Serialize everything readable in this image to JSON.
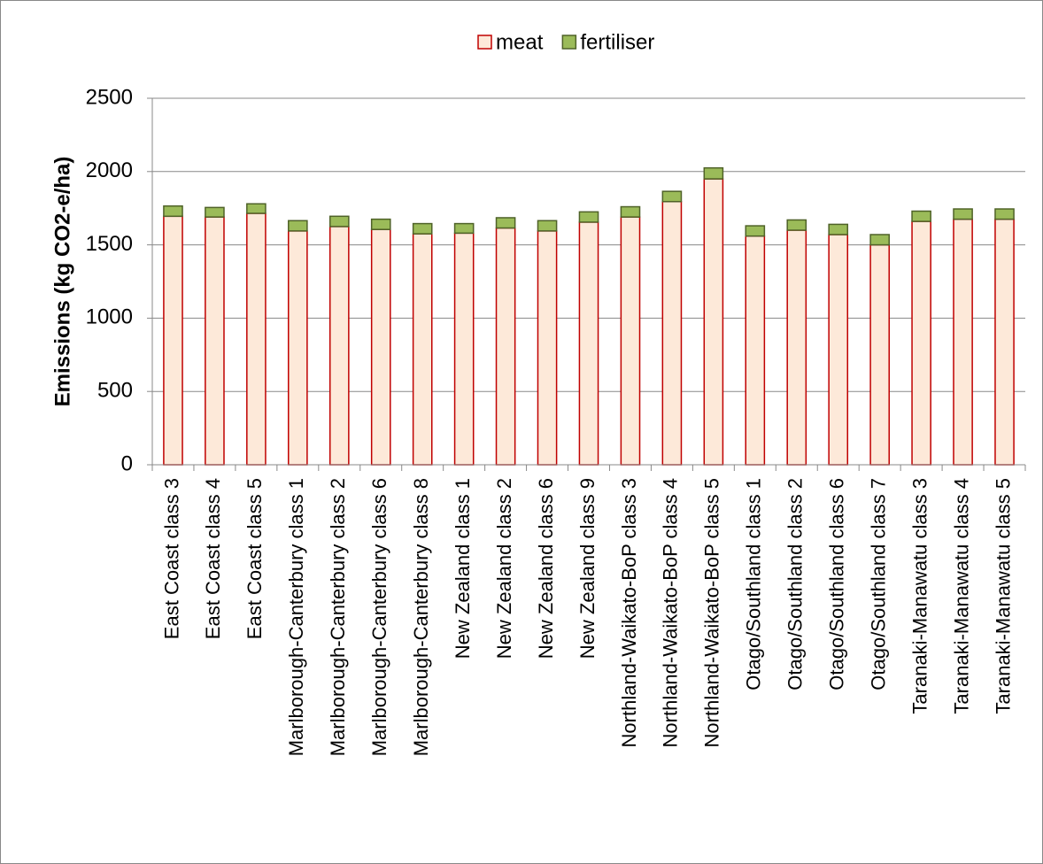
{
  "chart_data": {
    "type": "stacked-bar",
    "y_label": "Emissions (kg CO2-e/ha)",
    "categories": [
      "East Coast class 3",
      "East Coast class 4",
      "East Coast class 5",
      "Marlborough-Canterbury class 1",
      "Marlborough-Canterbury class 2",
      "Marlborough-Canterbury class 6",
      "Marlborough-Canterbury class 8",
      "New Zealand class 1",
      "New Zealand class 2",
      "New Zealand class 6",
      "New Zealand class 9",
      "Northland-Waikato-BoP class 3",
      "Northland-Waikato-BoP class 4",
      "Northland-Waikato-BoP class 5",
      "Otago/Southland class 1",
      "Otago/Southland class 2",
      "Otago/Southland class 6",
      "Otago/Southland class 7",
      "Taranaki-Manawatu class 3",
      "Taranaki-Manawatu class 4",
      "Taranaki-Manawatu class 5"
    ],
    "series": [
      {
        "name": "meat",
        "color": "#fde9d9",
        "stroke": "#c00000",
        "values": [
          1695,
          1690,
          1715,
          1595,
          1625,
          1605,
          1575,
          1580,
          1615,
          1595,
          1655,
          1690,
          1795,
          1950,
          1560,
          1600,
          1570,
          1500,
          1660,
          1675,
          1675
        ]
      },
      {
        "name": "fertiliser",
        "color": "#9bbb59",
        "stroke": "#4f6228",
        "values": [
          70,
          65,
          65,
          70,
          70,
          70,
          70,
          65,
          70,
          70,
          70,
          70,
          70,
          75,
          70,
          70,
          70,
          70,
          70,
          70,
          70
        ]
      }
    ],
    "ylim": [
      0,
      2500
    ],
    "yticks": [
      0,
      500,
      1000,
      1500,
      2000,
      2500
    ],
    "grid": true,
    "legend": "top"
  }
}
